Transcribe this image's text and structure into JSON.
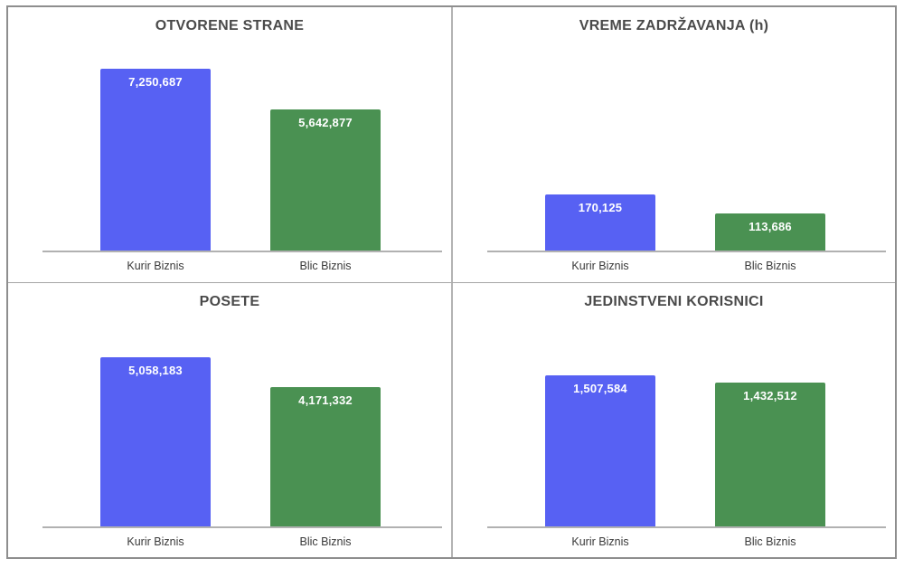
{
  "page": {
    "background": "#ffffff"
  },
  "colors": {
    "series": [
      "#5761F3",
      "#4A9152"
    ],
    "axis_line": "#b1b1b1",
    "outer_border": "#8e8e8e",
    "divider_vertical": "#b3b3b3",
    "divider_horizontal": "#a6a6a6",
    "title_text": "#4a4a4a",
    "category_text": "#3a3a3a",
    "value_text": "#ffffff"
  },
  "chart_data": [
    {
      "type": "bar",
      "title": "OTVORENE STRANE",
      "categories": [
        "Kurir Biznis",
        "Blic Biznis"
      ],
      "values": [
        7250687,
        5642877
      ],
      "display_values": [
        "7,250,687",
        "5,642,877"
      ],
      "series_colors": [
        "#5761F3",
        "#4A9152"
      ],
      "ylim": [
        0,
        8000000
      ],
      "grid": false,
      "legend": "none",
      "value_labels": "inside-top"
    },
    {
      "type": "bar",
      "title": "VREME ZADRŽAVANJA (h)",
      "categories": [
        "Kurir Biznis",
        "Blic Biznis"
      ],
      "values": [
        170125,
        113686
      ],
      "display_values": [
        "170,125",
        "113,686"
      ],
      "series_colors": [
        "#5761F3",
        "#4A9152"
      ],
      "ylim": [
        0,
        600000
      ],
      "grid": false,
      "legend": "none",
      "value_labels": "inside-top"
    },
    {
      "type": "bar",
      "title": "POSETE",
      "categories": [
        "Kurir Biznis",
        "Blic Biznis"
      ],
      "values": [
        5058183,
        4171332
      ],
      "display_values": [
        "5,058,183",
        "4,171,332"
      ],
      "series_colors": [
        "#5761F3",
        "#4A9152"
      ],
      "ylim": [
        0,
        6000000
      ],
      "grid": false,
      "legend": "none",
      "value_labels": "inside-top"
    },
    {
      "type": "bar",
      "title": "JEDINSTVENI KORISNICI",
      "categories": [
        "Kurir Biznis",
        "Blic Biznis"
      ],
      "values": [
        1507584,
        1432512
      ],
      "display_values": [
        "1,507,584",
        "1,432,512"
      ],
      "series_colors": [
        "#5761F3",
        "#4A9152"
      ],
      "ylim": [
        0,
        2000000
      ],
      "grid": false,
      "legend": "none",
      "value_labels": "inside-top"
    }
  ]
}
